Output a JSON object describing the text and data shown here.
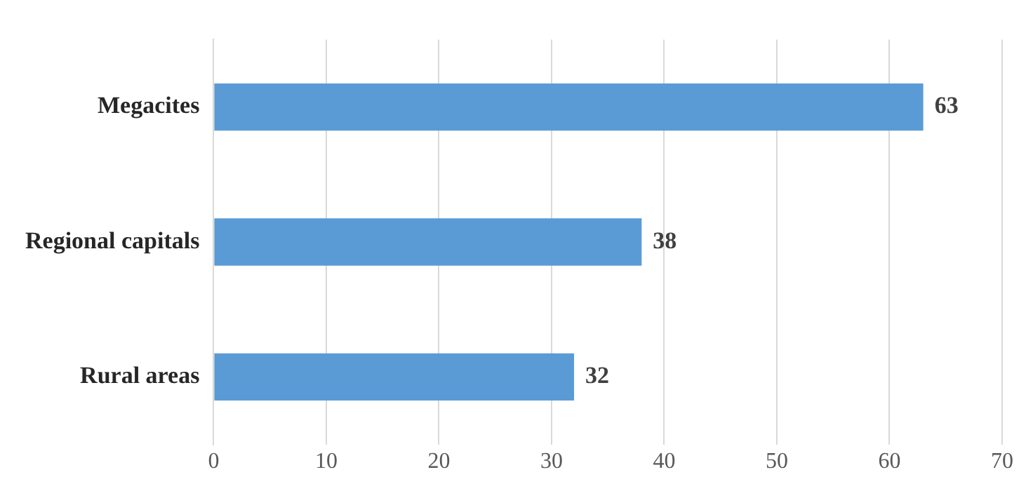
{
  "chart_data": {
    "type": "bar",
    "orientation": "horizontal",
    "categories": [
      "Megacites",
      "Regional capitals",
      "Rural areas"
    ],
    "values": [
      63,
      38,
      32
    ],
    "color": "#5b9bd5",
    "xlim": [
      0,
      70
    ],
    "xticks": [
      0,
      10,
      20,
      30,
      40,
      50,
      60,
      70
    ],
    "grid": "x",
    "data_labels": true
  }
}
